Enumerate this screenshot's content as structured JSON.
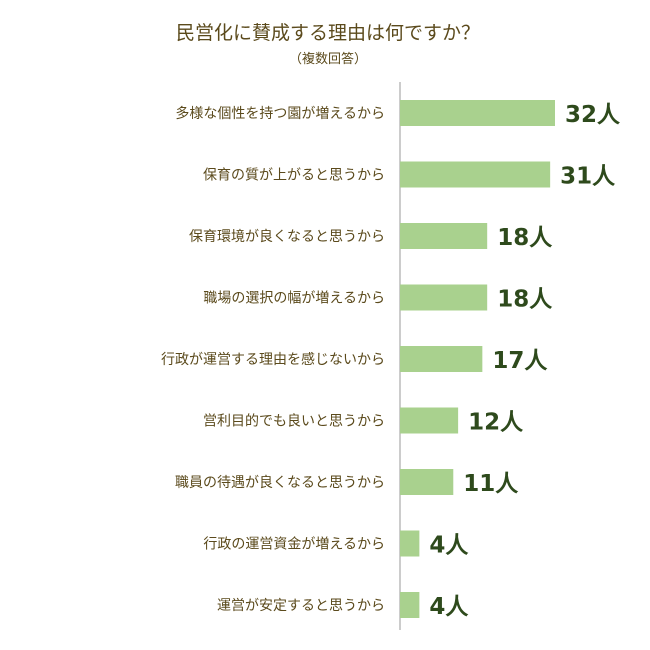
{
  "colors": {
    "title": "#5b4a1c",
    "category_label": "#5b4a1c",
    "bar": "#a9d18e",
    "value_label": "#2e4a1c",
    "axis": "#999999"
  },
  "chart_data": {
    "type": "bar",
    "orientation": "horizontal",
    "title": "民営化に賛成する理由は何ですか？",
    "subtitle": "（複数回答）",
    "xlabel": "",
    "ylabel": "",
    "unit": "人",
    "grid": false,
    "categories": [
      "多様な個性を持つ園が増えるから",
      "保育の質が上がると思うから",
      "保育環境が良くなると思うから",
      "職場の選択の幅が増えるから",
      "行政が運営する理由を感じないから",
      "営利目的でも良いと思うから",
      "職員の待遇が良くなると思うから",
      "行政の運営資金が増えるから",
      "運営が安定すると思うから"
    ],
    "values": [
      32,
      31,
      18,
      18,
      17,
      12,
      11,
      4,
      4
    ],
    "value_labels": [
      "32人",
      "31人",
      "18人",
      "18人",
      "17人",
      "12人",
      "11人",
      "4人",
      "4人"
    ]
  }
}
